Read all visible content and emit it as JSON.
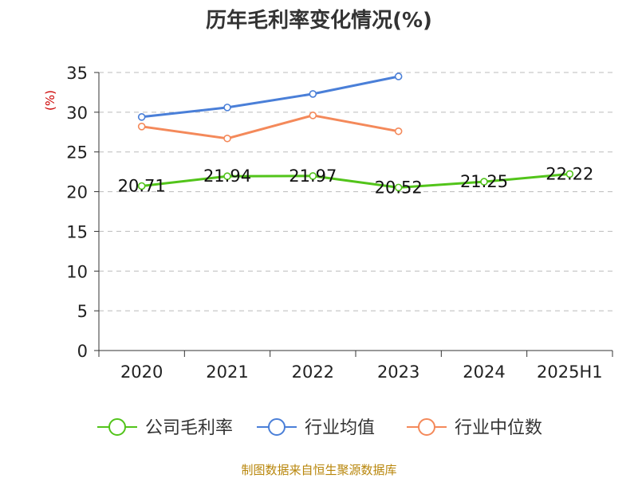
{
  "chart_data": {
    "type": "line",
    "title": "历年毛利率变化情况(%)",
    "ylabel": "(%)",
    "xlabel": "",
    "categories": [
      "2020",
      "2021",
      "2022",
      "2023",
      "2024",
      "2025H1"
    ],
    "ylim": [
      0,
      35
    ],
    "yticks": [
      0,
      5,
      10,
      15,
      20,
      25,
      30,
      35
    ],
    "grid": "horizontal dashed",
    "legend_position": "bottom",
    "series": [
      {
        "name": "公司毛利率",
        "color": "#52c41a",
        "values": [
          20.71,
          21.94,
          21.97,
          20.52,
          21.25,
          22.22
        ],
        "show_labels": true
      },
      {
        "name": "行业均值",
        "color": "#4a7fd8",
        "values": [
          29.4,
          30.6,
          32.3,
          34.5,
          null,
          null
        ],
        "show_labels": false
      },
      {
        "name": "行业中位数",
        "color": "#f4895a",
        "values": [
          28.2,
          26.7,
          29.6,
          27.6,
          null,
          null
        ],
        "show_labels": false
      }
    ],
    "data_labels": [
      "20.71",
      "21.94",
      "21.97",
      "20.52",
      "21.25",
      "22.22"
    ]
  },
  "source_text": "制图数据来自恒生聚源数据库"
}
